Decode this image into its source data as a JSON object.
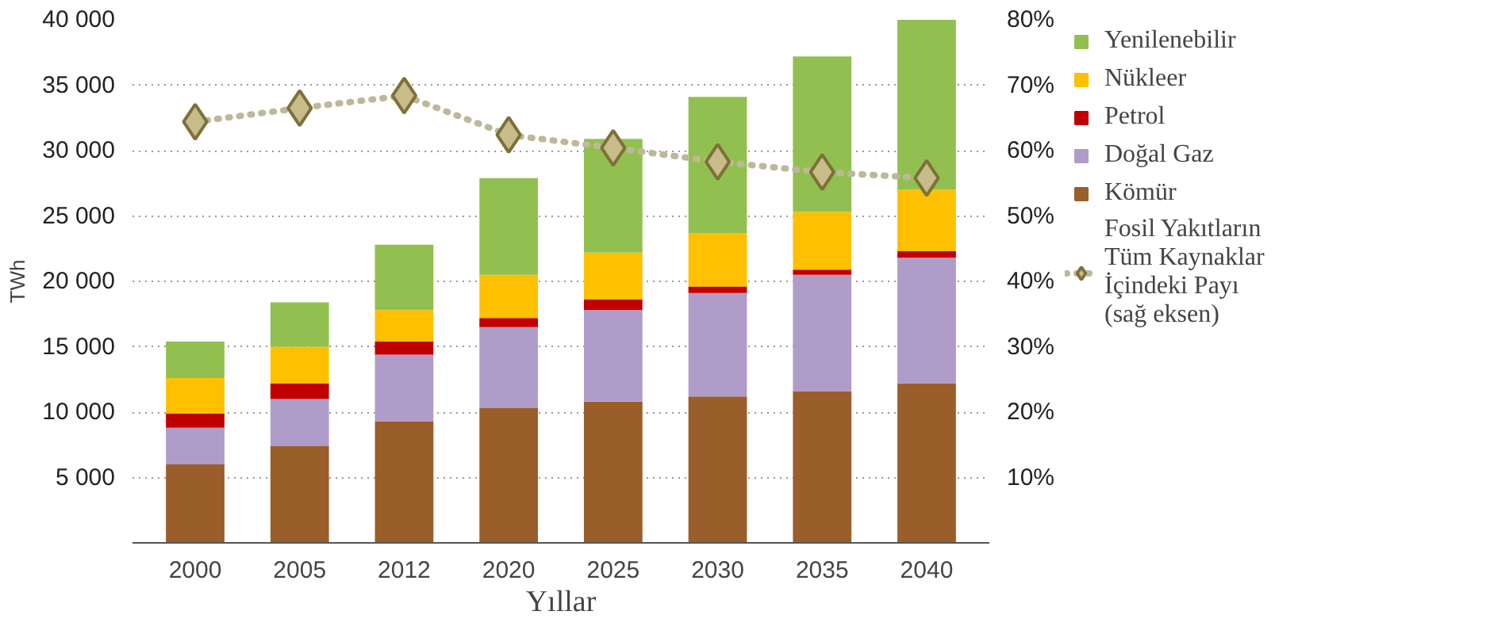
{
  "chart_data": {
    "type": "bar",
    "stacked": true,
    "xlabel": "Yıllar",
    "ylabel": "TWh",
    "categories": [
      "2000",
      "2005",
      "2012",
      "2020",
      "2025",
      "2030",
      "2035",
      "2040"
    ],
    "series": [
      {
        "name": "Kömür",
        "color": "#9a5e2a",
        "values": [
          6000,
          7400,
          9300,
          10300,
          10800,
          11200,
          11600,
          12200
        ]
      },
      {
        "name": "Doğal Gaz",
        "color": "#b09cc8",
        "values": [
          2800,
          3600,
          5100,
          6200,
          7000,
          7900,
          8900,
          9600
        ]
      },
      {
        "name": "Petrol",
        "color": "#c00000",
        "values": [
          1100,
          1200,
          1000,
          700,
          800,
          500,
          400,
          500
        ]
      },
      {
        "name": "Nükleer",
        "color": "#ffc000",
        "values": [
          2700,
          2800,
          2400,
          3300,
          3600,
          4100,
          4400,
          4700
        ]
      },
      {
        "name": "Yenilenebilir",
        "color": "#92c050",
        "values": [
          2800,
          3400,
          5000,
          7400,
          8700,
          10400,
          11900,
          13000
        ]
      },
      {
        "name": "Fosil Yakıtların Tüm Kaynaklar İçindeki Payı (sağ eksen)",
        "type": "line",
        "axis": "y2",
        "color": "#c8bd8a",
        "marker": "diamond",
        "line_style": "dotted",
        "values": [
          64.4,
          66.5,
          68.4,
          62.4,
          60.4,
          58.3,
          56.7,
          55.8
        ]
      }
    ],
    "ylim": [
      0,
      40000
    ],
    "yticks": [
      {
        "value": 5000,
        "label": "5 000"
      },
      {
        "value": 10000,
        "label": "10 000"
      },
      {
        "value": 15000,
        "label": "15 000"
      },
      {
        "value": 20000,
        "label": "20 000"
      },
      {
        "value": 25000,
        "label": "25 000"
      },
      {
        "value": 30000,
        "label": "30 000"
      },
      {
        "value": 35000,
        "label": "35 000"
      },
      {
        "value": 40000,
        "label": "40 000"
      }
    ],
    "y2lim": [
      0,
      80
    ],
    "y2ticks": [
      {
        "value": 10,
        "label": "10%"
      },
      {
        "value": 20,
        "label": "20%"
      },
      {
        "value": 30,
        "label": "30%"
      },
      {
        "value": 40,
        "label": "40%"
      },
      {
        "value": 50,
        "label": "50%"
      },
      {
        "value": 60,
        "label": "60%"
      },
      {
        "value": 70,
        "label": "70%"
      },
      {
        "value": 80,
        "label": "80%"
      }
    ],
    "grid": "y",
    "legend": "right"
  }
}
